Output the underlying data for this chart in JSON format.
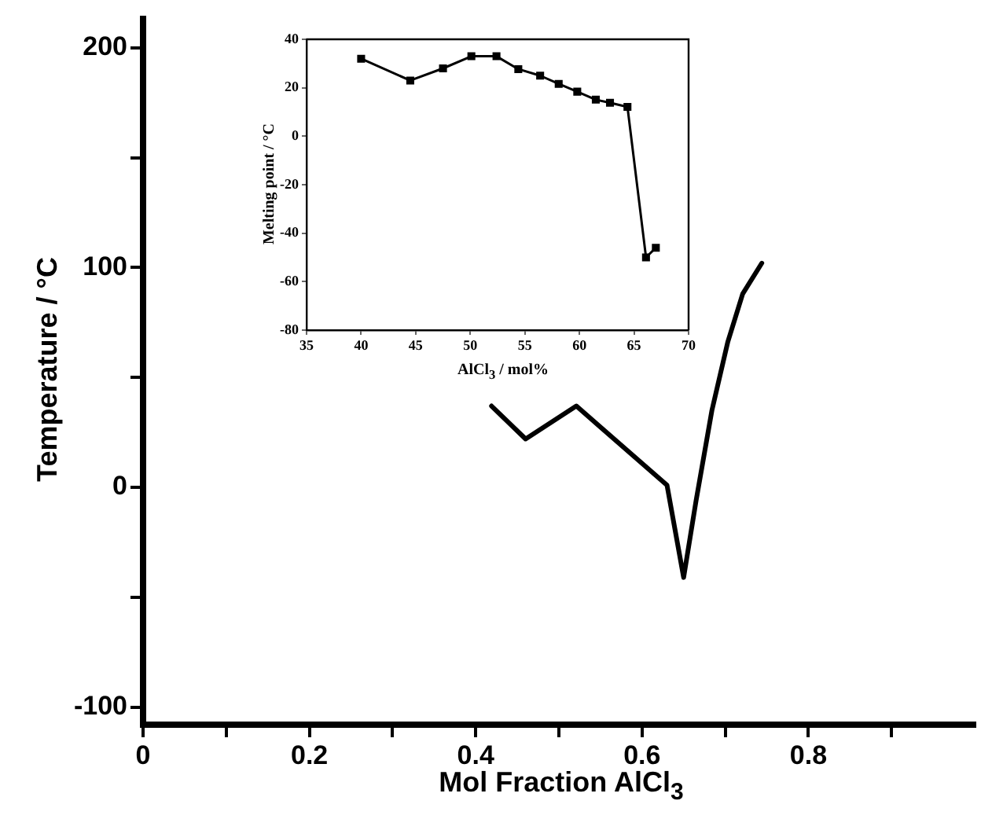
{
  "chart_data": [
    {
      "type": "line",
      "xlabel": "Mol Fraction AlCl$_{3}$",
      "ylabel": "Temperature / °C",
      "xlim": [
        0,
        1
      ],
      "ylim": [
        -108,
        213
      ],
      "xticks": [
        0,
        {
          "value": 0.1,
          "label": null
        },
        0.2,
        {
          "value": 0.3,
          "label": null
        },
        0.4,
        {
          "value": 0.5,
          "label": null
        },
        0.6,
        {
          "value": 0.7,
          "label": null
        },
        0.8,
        {
          "value": 0.9,
          "label": null
        }
      ],
      "yticks": [
        -100,
        {
          "value": -50,
          "label": null
        },
        0,
        {
          "value": 50,
          "label": null
        },
        100,
        {
          "value": 150,
          "label": null
        },
        200
      ],
      "x": [
        0.419,
        0.46,
        0.521,
        0.63,
        0.65,
        0.665,
        0.684,
        0.703,
        0.721,
        0.744
      ],
      "series": [
        {
          "color": "#000000",
          "values": [
            37,
            22,
            37,
            1,
            -41,
            -6,
            35,
            66,
            88,
            102
          ]
        }
      ],
      "marker": "none"
    },
    {
      "type": "line",
      "xlabel": "AlCl$_{3}$ / mol%",
      "ylabel": "Melting point / °C",
      "xlim": [
        35,
        70
      ],
      "ylim": [
        -80,
        40
      ],
      "xticks": [
        35,
        40,
        45,
        50,
        55,
        60,
        65,
        70
      ],
      "yticks": [
        -80,
        -60,
        -40,
        -20,
        0,
        20,
        40
      ],
      "x": [
        40,
        44.5,
        47.5,
        50.1,
        52.4,
        54.4,
        56.4,
        58.1,
        59.8,
        61.5,
        62.8,
        64.4,
        66.1,
        67
      ],
      "series": [
        {
          "color": "#000000",
          "values": [
            32,
            23,
            28,
            33,
            33,
            27.7,
            25,
            21.6,
            18.4,
            15.1,
            13.8,
            12.1,
            -50,
            -46
          ]
        }
      ],
      "marker": "square"
    }
  ]
}
